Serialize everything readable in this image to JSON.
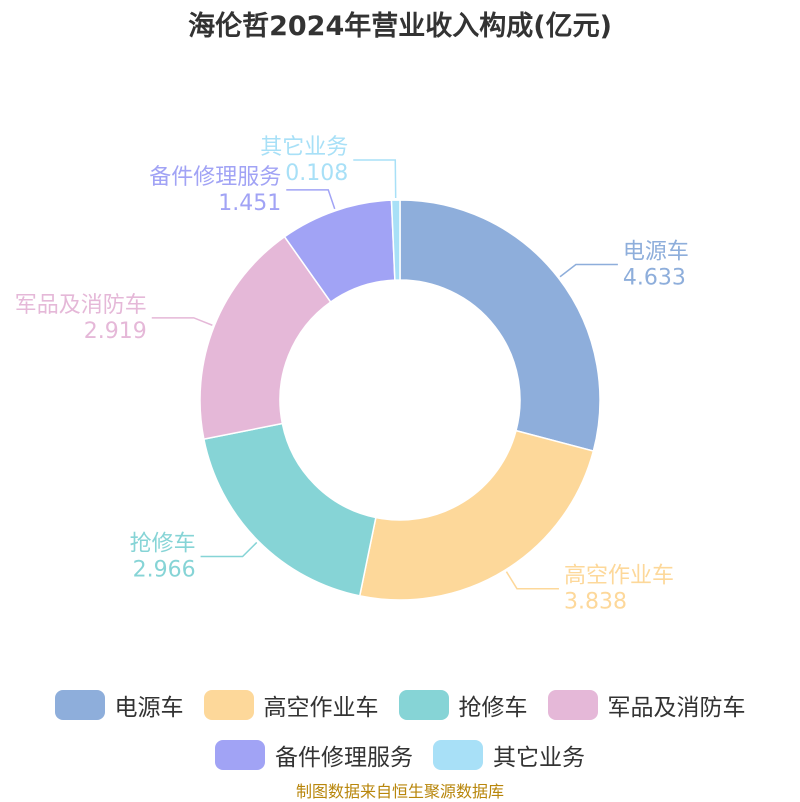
{
  "chart_data": {
    "type": "pie",
    "variant": "donut",
    "title": "海伦哲2024年营业收入构成(亿元)",
    "categories": [
      "电源车",
      "高空作业车",
      "抢修车",
      "军品及消防车",
      "备件修理服务",
      "其它业务"
    ],
    "values": [
      4.633,
      3.838,
      2.966,
      2.919,
      1.451,
      0.108
    ],
    "value_labels": [
      "4.633",
      "3.838",
      "2.966",
      "2.919",
      "1.451",
      "0.108"
    ],
    "colors": [
      "#8eaedb",
      "#fdd89a",
      "#86d4d6",
      "#e5b8d8",
      "#a1a3f5",
      "#a8e0f7"
    ],
    "legend_position": "bottom"
  },
  "source": "制图数据来自恒生聚源数据库"
}
